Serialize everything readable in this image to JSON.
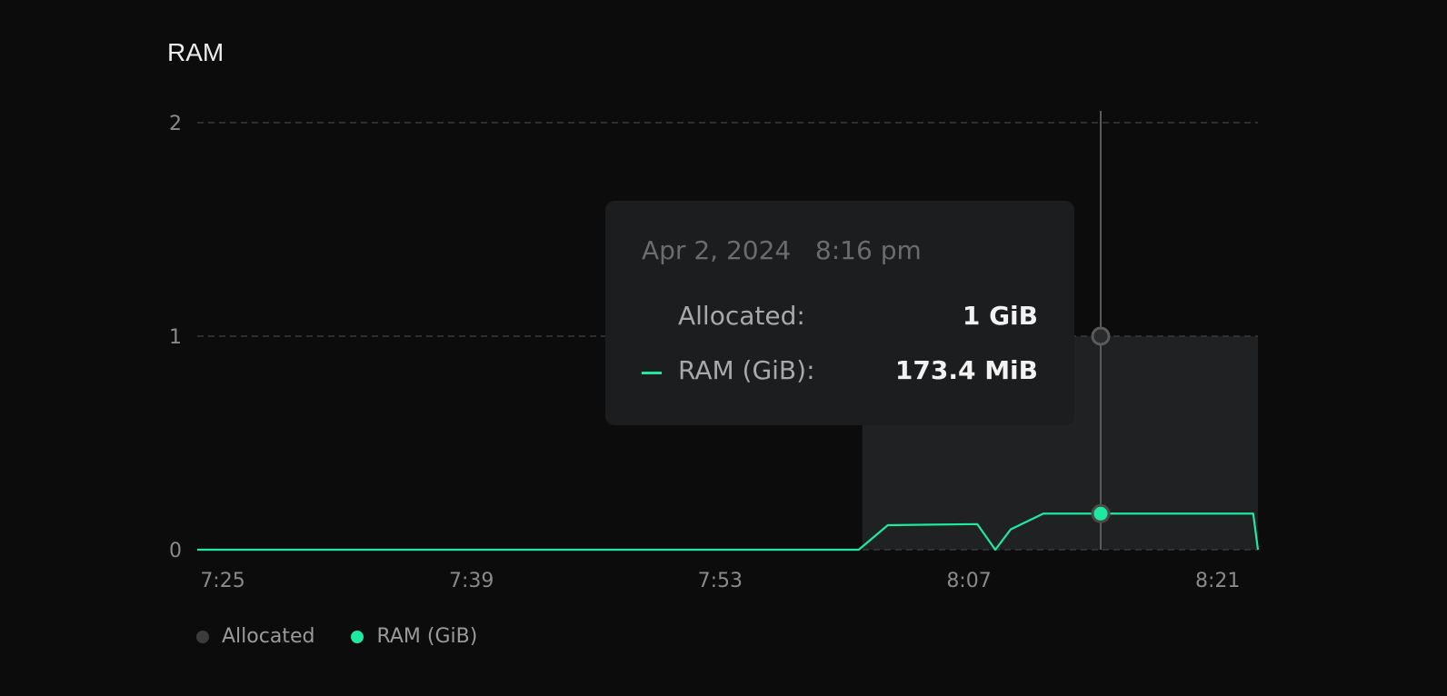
{
  "chart_data": {
    "type": "line",
    "title": "RAM",
    "xlabel": "",
    "ylabel": "",
    "x_ticks": [
      "7:25",
      "7:39",
      "7:53",
      "8:07",
      "8:21"
    ],
    "y_ticks": [
      "0",
      "1",
      "2"
    ],
    "ylim": [
      0,
      2
    ],
    "xlim": [
      "7:23:34",
      "8:23:16"
    ],
    "grid": true,
    "legend_position": "bottom-left",
    "series": [
      {
        "name": "Allocated",
        "type": "area",
        "color": "#3b3c3e",
        "points": [
          [
            "8:01:00",
            1
          ],
          [
            "8:23:16",
            1
          ]
        ]
      },
      {
        "name": "RAM (GiB)",
        "type": "line",
        "color": "#1de9a0",
        "points": [
          [
            "7:23:34",
            0
          ],
          [
            "8:00:48",
            0
          ],
          [
            "8:02:26",
            0.115
          ],
          [
            "8:07:28",
            0.12
          ],
          [
            "8:08:29",
            0
          ],
          [
            "8:09:21",
            0.095
          ],
          [
            "8:11:11",
            0.169
          ],
          [
            "8:23:00",
            0.169
          ],
          [
            "8:23:16",
            0
          ]
        ]
      }
    ],
    "hover": {
      "x": "8:14:25",
      "date": "Apr 2, 2024",
      "time": "8:16 pm",
      "rows": [
        {
          "label": "Allocated:",
          "value": "1 GiB"
        },
        {
          "label": "RAM (GiB):",
          "value": "173.4 MiB"
        }
      ]
    }
  }
}
